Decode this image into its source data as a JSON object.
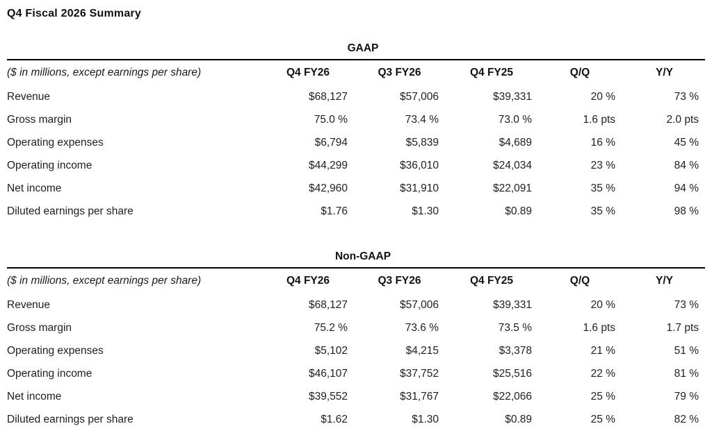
{
  "page": {
    "title": "Q4 Fiscal 2026 Summary"
  },
  "colors": {
    "background": "#ffffff",
    "text": "#1b1b1b",
    "heading_text": "#111111",
    "table_rule": "#000000"
  },
  "tables": [
    {
      "caption": "GAAP",
      "unit_note": "($ in millions, except earnings per share)",
      "columns": [
        "Q4 FY26",
        "Q3 FY26",
        "Q4 FY25",
        "Q/Q",
        "Y/Y"
      ],
      "rows": [
        {
          "label": "Revenue",
          "values": [
            "$68,127",
            "$57,006",
            "$39,331",
            "20 %",
            "73 %"
          ]
        },
        {
          "label": "Gross margin",
          "values": [
            "75.0 %",
            "73.4 %",
            "73.0 %",
            "1.6 pts",
            "2.0 pts"
          ]
        },
        {
          "label": "Operating expenses",
          "values": [
            "$6,794",
            "$5,839",
            "$4,689",
            "16 %",
            "45 %"
          ]
        },
        {
          "label": "Operating income",
          "values": [
            "$44,299",
            "$36,010",
            "$24,034",
            "23 %",
            "84 %"
          ]
        },
        {
          "label": "Net income",
          "values": [
            "$42,960",
            "$31,910",
            "$22,091",
            "35 %",
            "94 %"
          ]
        },
        {
          "label": "Diluted earnings per share",
          "values": [
            "$1.76",
            "$1.30",
            "$0.89",
            "35 %",
            "98 %"
          ]
        }
      ]
    },
    {
      "caption": "Non-GAAP",
      "unit_note": "($ in millions, except earnings per share)",
      "columns": [
        "Q4 FY26",
        "Q3 FY26",
        "Q4 FY25",
        "Q/Q",
        "Y/Y"
      ],
      "rows": [
        {
          "label": "Revenue",
          "values": [
            "$68,127",
            "$57,006",
            "$39,331",
            "20 %",
            "73 %"
          ]
        },
        {
          "label": "Gross margin",
          "values": [
            "75.2 %",
            "73.6 %",
            "73.5 %",
            "1.6 pts",
            "1.7 pts"
          ]
        },
        {
          "label": "Operating expenses",
          "values": [
            "$5,102",
            "$4,215",
            "$3,378",
            "21 %",
            "51 %"
          ]
        },
        {
          "label": "Operating income",
          "values": [
            "$46,107",
            "$37,752",
            "$25,516",
            "22 %",
            "81 %"
          ]
        },
        {
          "label": "Net income",
          "values": [
            "$39,552",
            "$31,767",
            "$22,066",
            "25 %",
            "79 %"
          ]
        },
        {
          "label": "Diluted earnings per share",
          "values": [
            "$1.62",
            "$1.30",
            "$0.89",
            "25 %",
            "82 %"
          ]
        }
      ]
    }
  ]
}
